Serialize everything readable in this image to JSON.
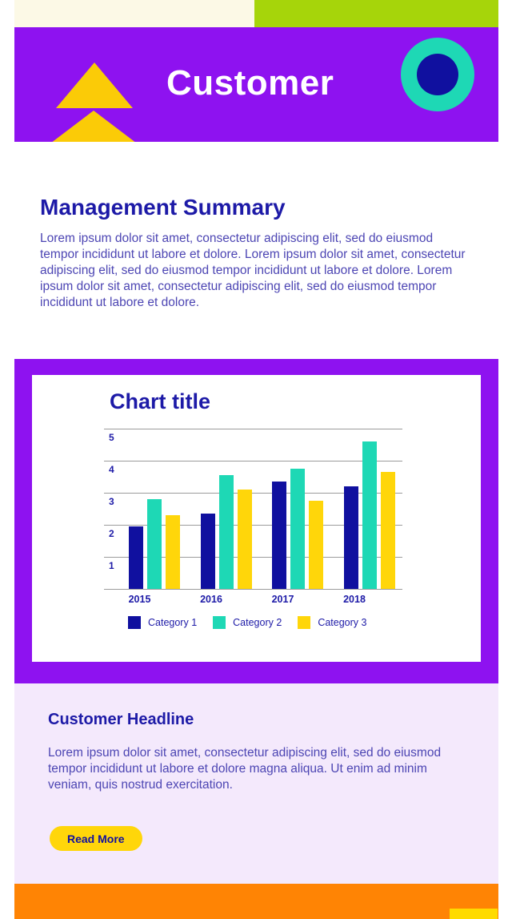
{
  "colors": {
    "purple": "#8E12F0",
    "cream": "#FCF9E6",
    "green": "#A6D50A",
    "gold": "#FBCB07",
    "teal": "#1ED8B5",
    "navy": "#10109F",
    "heading": "#1D1AA7",
    "body": "#4C45B3",
    "lavender": "#F4E9FC",
    "orange": "#FF8404",
    "yellow": "#FFD60A",
    "accent": "#FFDB00",
    "gridline": "#9C9C9C"
  },
  "header": {
    "title": "Customer"
  },
  "summary": {
    "heading": "Management Summary",
    "body": "Lorem ipsum dolor sit amet, consectetur adipiscing elit, sed do eiusmod tempor incididunt ut labore et dolore. Lorem ipsum dolor sit amet, consectetur adipiscing elit, sed do eiusmod tempor incididunt ut labore et dolore. Lorem ipsum dolor sit amet, consectetur adipiscing elit, sed do eiusmod tempor incididunt ut labore et dolore."
  },
  "chart_data": {
    "type": "bar",
    "title": "Chart title",
    "categories": [
      "2015",
      "2016",
      "2017",
      "2018"
    ],
    "series": [
      {
        "name": "Category 1",
        "color": "#10109F",
        "values": [
          1.95,
          2.35,
          3.35,
          3.2
        ]
      },
      {
        "name": "Category 2",
        "color": "#1ED8B5",
        "values": [
          2.8,
          3.55,
          3.75,
          4.6
        ]
      },
      {
        "name": "Category 3",
        "color": "#FFD60A",
        "values": [
          2.3,
          3.1,
          2.75,
          3.65
        ]
      }
    ],
    "xlabel": "",
    "ylabel": "",
    "ylim": [
      0,
      5
    ],
    "ytick_step": 1,
    "grid": "horizontal",
    "legend_position": "bottom"
  },
  "headline": {
    "heading": "Customer Headline",
    "body": "Lorem ipsum dolor sit amet, consectetur adipiscing elit, sed do eiusmod tempor incididunt ut labore et dolore magna aliqua. Ut enim ad minim veniam, quis nostrud exercitation.",
    "button_label": "Read More"
  }
}
